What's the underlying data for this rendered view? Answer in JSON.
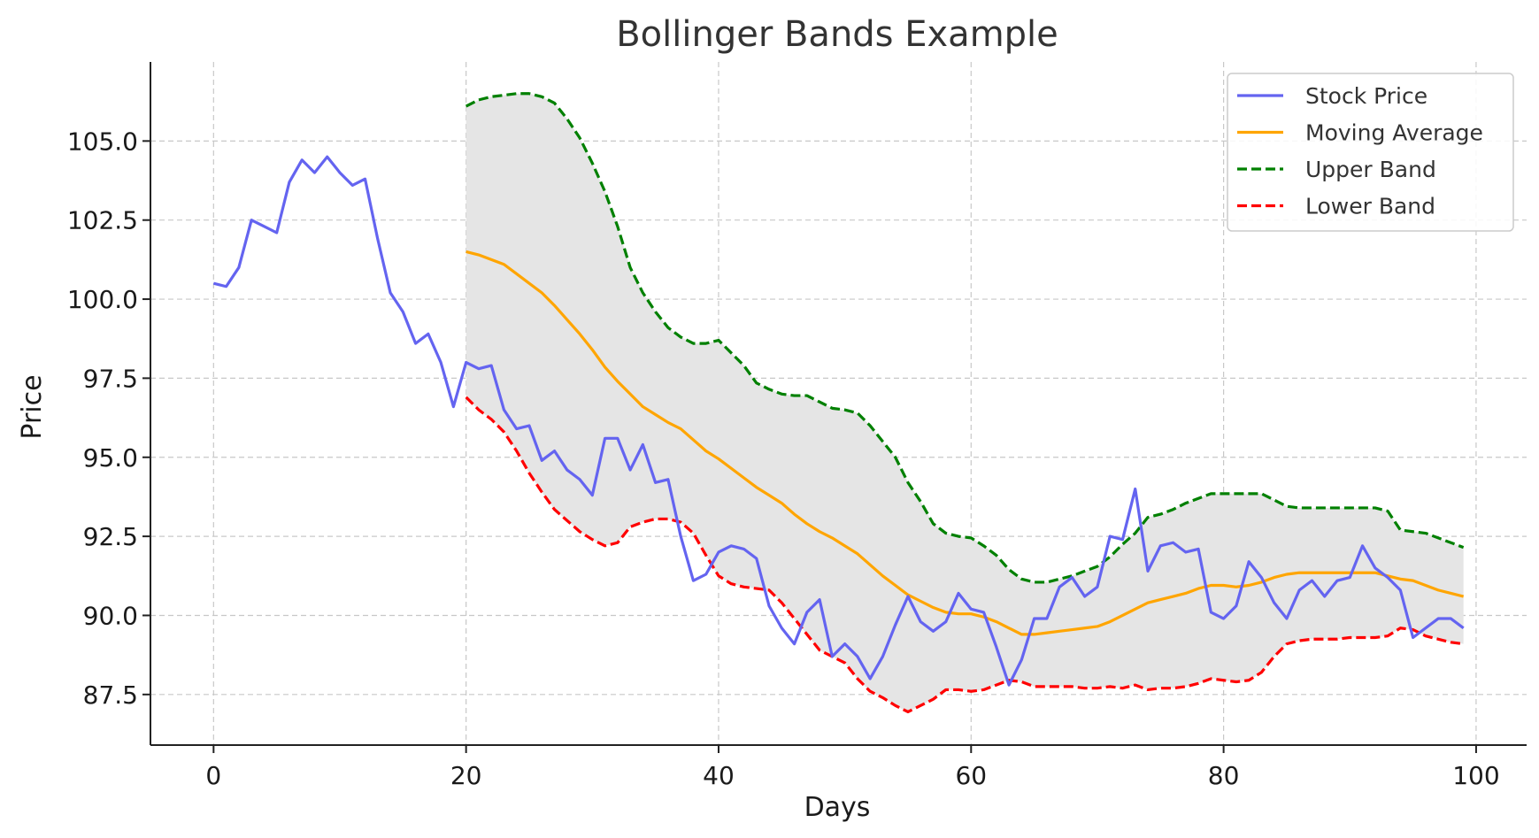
{
  "chart_data": {
    "type": "line",
    "title": "Bollinger Bands Example",
    "xlabel": "Days",
    "ylabel": "Price",
    "xlim": [
      -5,
      104
    ],
    "ylim": [
      85.9,
      107.5
    ],
    "xticks": [
      0,
      20,
      40,
      60,
      80,
      100
    ],
    "xtick_labels": [
      "0",
      "20",
      "40",
      "60",
      "80",
      "100"
    ],
    "yticks": [
      87.5,
      90.0,
      92.5,
      95.0,
      97.5,
      100.0,
      102.5,
      105.0
    ],
    "ytick_labels": [
      "87.5",
      "90.0",
      "92.5",
      "95.0",
      "97.5",
      "100.0",
      "102.5",
      "105.0"
    ],
    "grid": true,
    "legend_position": "top-right",
    "band_fill_color": "#e5e5e5",
    "series": [
      {
        "name": "Stock Price",
        "color": "#6464f0",
        "style": "solid",
        "x_start": 0,
        "values": [
          100.5,
          100.4,
          101.0,
          102.5,
          102.3,
          102.1,
          103.7,
          104.4,
          104.0,
          104.5,
          104.0,
          103.6,
          103.8,
          101.9,
          100.2,
          99.6,
          98.6,
          98.9,
          98.0,
          96.6,
          98.0,
          97.8,
          97.9,
          96.5,
          95.9,
          96.0,
          94.9,
          95.2,
          94.6,
          94.3,
          93.8,
          95.6,
          95.6,
          94.6,
          95.4,
          94.2,
          94.3,
          92.5,
          91.1,
          91.3,
          92.0,
          92.2,
          92.1,
          91.8,
          90.3,
          89.6,
          89.1,
          90.1,
          90.5,
          88.7,
          89.1,
          88.7,
          88.0,
          88.7,
          89.7,
          90.6,
          89.8,
          89.5,
          89.8,
          90.7,
          90.2,
          90.1,
          89.0,
          87.8,
          88.6,
          89.9,
          89.9,
          90.9,
          91.2,
          90.6,
          90.9,
          92.5,
          92.4,
          94.0,
          91.4,
          92.2,
          92.3,
          92.0,
          92.1,
          90.1,
          89.9,
          90.3,
          91.7,
          91.2,
          90.4,
          89.9,
          90.8,
          91.1,
          90.6,
          91.1,
          91.2,
          92.2,
          91.5,
          91.2,
          90.8,
          89.3,
          89.6,
          89.9,
          89.9,
          89.6
        ]
      },
      {
        "name": "Moving Average",
        "color": "#ffa500",
        "style": "solid",
        "x_start": 20,
        "values": [
          101.5,
          101.4,
          101.25,
          101.1,
          100.8,
          100.5,
          100.2,
          99.8,
          99.35,
          98.9,
          98.4,
          97.85,
          97.4,
          97.0,
          96.6,
          96.35,
          96.1,
          95.9,
          95.55,
          95.2,
          94.95,
          94.65,
          94.35,
          94.05,
          93.8,
          93.55,
          93.2,
          92.9,
          92.65,
          92.45,
          92.2,
          91.95,
          91.6,
          91.25,
          90.95,
          90.65,
          90.45,
          90.25,
          90.1,
          90.05,
          90.05,
          89.95,
          89.8,
          89.6,
          89.4,
          89.4,
          89.45,
          89.5,
          89.55,
          89.6,
          89.65,
          89.8,
          90.0,
          90.2,
          90.4,
          90.5,
          90.6,
          90.7,
          90.85,
          90.95,
          90.95,
          90.9,
          90.95,
          91.05,
          91.2,
          91.3,
          91.35,
          91.35,
          91.35,
          91.35,
          91.35,
          91.35,
          91.35,
          91.25,
          91.15,
          91.1,
          90.95,
          90.8,
          90.7,
          90.6
        ]
      },
      {
        "name": "Upper Band",
        "color": "#008000",
        "style": "dashed",
        "x_start": 20,
        "values": [
          106.1,
          106.3,
          106.4,
          106.45,
          106.5,
          106.5,
          106.4,
          106.2,
          105.7,
          105.1,
          104.3,
          103.4,
          102.3,
          101.0,
          100.2,
          99.6,
          99.1,
          98.8,
          98.6,
          98.6,
          98.7,
          98.3,
          97.9,
          97.35,
          97.15,
          97.0,
          96.95,
          96.95,
          96.75,
          96.55,
          96.5,
          96.4,
          96.0,
          95.5,
          95.0,
          94.2,
          93.6,
          92.9,
          92.6,
          92.5,
          92.45,
          92.2,
          91.9,
          91.45,
          91.15,
          91.05,
          91.05,
          91.15,
          91.25,
          91.4,
          91.55,
          91.85,
          92.25,
          92.6,
          93.1,
          93.2,
          93.35,
          93.55,
          93.7,
          93.85,
          93.85,
          93.85,
          93.85,
          93.85,
          93.65,
          93.45,
          93.4,
          93.4,
          93.4,
          93.4,
          93.4,
          93.4,
          93.4,
          93.3,
          92.7,
          92.65,
          92.6,
          92.45,
          92.3,
          92.15
        ]
      },
      {
        "name": "Lower Band",
        "color": "#ff0000",
        "style": "dashed",
        "x_start": 20,
        "values": [
          96.9,
          96.5,
          96.2,
          95.8,
          95.2,
          94.5,
          93.9,
          93.35,
          93.0,
          92.65,
          92.4,
          92.2,
          92.3,
          92.8,
          92.95,
          93.05,
          93.05,
          92.95,
          92.6,
          91.9,
          91.25,
          91.0,
          90.9,
          90.85,
          90.8,
          90.4,
          89.9,
          89.4,
          88.9,
          88.7,
          88.5,
          88.0,
          87.6,
          87.4,
          87.15,
          86.95,
          87.15,
          87.35,
          87.65,
          87.65,
          87.6,
          87.65,
          87.8,
          87.95,
          87.9,
          87.75,
          87.75,
          87.75,
          87.75,
          87.7,
          87.7,
          87.75,
          87.7,
          87.8,
          87.65,
          87.7,
          87.7,
          87.75,
          87.85,
          88.0,
          87.95,
          87.9,
          87.95,
          88.2,
          88.7,
          89.1,
          89.2,
          89.25,
          89.25,
          89.25,
          89.3,
          89.3,
          89.3,
          89.35,
          89.6,
          89.55,
          89.35,
          89.25,
          89.15,
          89.1
        ]
      }
    ]
  }
}
